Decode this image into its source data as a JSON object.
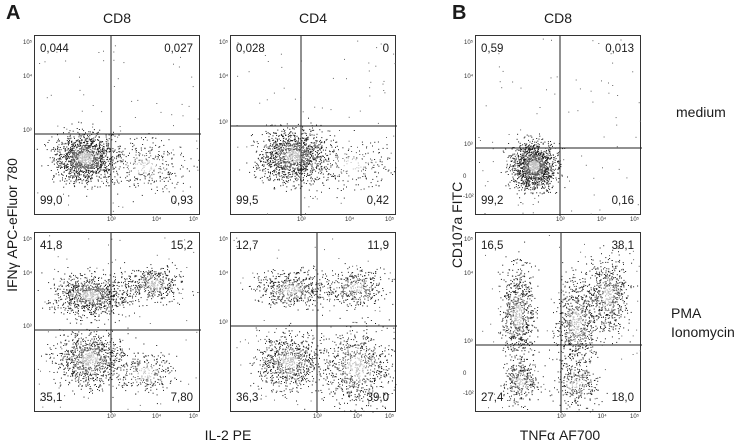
{
  "panels": [
    "A",
    "B"
  ],
  "column_titles": [
    "CD8",
    "CD4",
    "CD8"
  ],
  "axis_labels": {
    "a_y": "IFNγ APC-eFluor 780",
    "a_x": "IL-2 PE",
    "b_y": "CD107a FITC",
    "b_x": "TNFα AF700"
  },
  "conditions": [
    "medium",
    "PMA",
    "Ionomycin"
  ],
  "tick_labels": {
    "x": [
      "10³",
      "10⁴",
      "10⁵"
    ],
    "y": [
      "10⁵",
      "10⁴",
      "10³"
    ],
    "b_zero": "0",
    "b_neg": "-10²"
  },
  "chart_data": [
    {
      "type": "scatter",
      "panel": "A",
      "title": "CD8",
      "xlabel": "IL-2 PE",
      "ylabel": "IFNγ APC-eFluor 780",
      "condition": "medium",
      "quadrants": {
        "top_left": "0,044",
        "top_right": "0,027",
        "bottom_left": "99,0",
        "bottom_right": "0,93"
      }
    },
    {
      "type": "scatter",
      "panel": "A",
      "title": "CD4",
      "xlabel": "IL-2 PE",
      "ylabel": "IFNγ APC-eFluor 780",
      "condition": "medium",
      "quadrants": {
        "top_left": "0,028",
        "top_right": "0",
        "bottom_left": "99,5",
        "bottom_right": "0,42"
      }
    },
    {
      "type": "scatter",
      "panel": "A",
      "title": "CD8",
      "xlabel": "IL-2 PE",
      "ylabel": "IFNγ APC-eFluor 780",
      "condition": "PMA Ionomycin",
      "quadrants": {
        "top_left": "41,8",
        "top_right": "15,2",
        "bottom_left": "35,1",
        "bottom_right": "7,80"
      }
    },
    {
      "type": "scatter",
      "panel": "A",
      "title": "CD4",
      "xlabel": "IL-2 PE",
      "ylabel": "IFNγ APC-eFluor 780",
      "condition": "PMA Ionomycin",
      "quadrants": {
        "top_left": "12,7",
        "top_right": "11,9",
        "bottom_left": "36,3",
        "bottom_right": "39,0"
      }
    },
    {
      "type": "scatter",
      "panel": "B",
      "title": "CD8",
      "xlabel": "TNFα AF700",
      "ylabel": "CD107a FITC",
      "condition": "medium",
      "quadrants": {
        "top_left": "0,59",
        "top_right": "0,013",
        "bottom_left": "99,2",
        "bottom_right": "0,16"
      }
    },
    {
      "type": "scatter",
      "panel": "B",
      "title": "CD8",
      "xlabel": "TNFα AF700",
      "ylabel": "CD107a FITC",
      "condition": "PMA Ionomycin",
      "quadrants": {
        "top_left": "16,5",
        "top_right": "38,1",
        "bottom_left": "27,4",
        "bottom_right": "18,0"
      }
    }
  ]
}
